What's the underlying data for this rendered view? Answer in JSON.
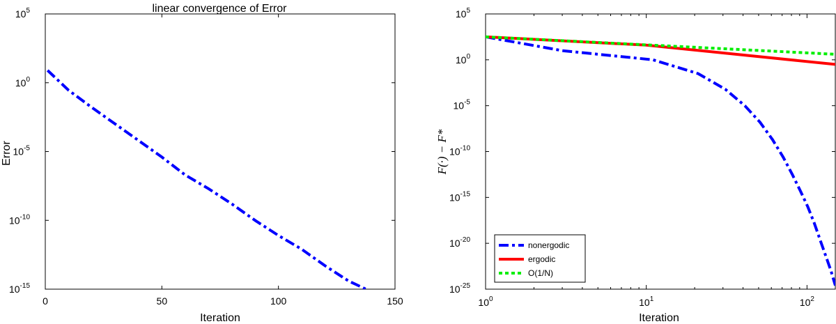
{
  "chart_data": [
    {
      "type": "line",
      "title": "linear convergence of Error",
      "xlabel": "Iteration",
      "ylabel": "Error",
      "xscale": "linear",
      "yscale": "log",
      "xlim": [
        0,
        150
      ],
      "ylim_exp": [
        -15,
        5
      ],
      "x_ticks": [
        0,
        50,
        100,
        150
      ],
      "x_tick_labels": [
        "0",
        "50",
        "100",
        "150"
      ],
      "y_tick_exps": [
        5,
        0,
        -5,
        -10,
        -15
      ],
      "y_tick_base": "10",
      "y_tick_exp_labels": [
        "5",
        "0",
        "-5",
        "-10",
        "-15"
      ],
      "grid": false,
      "series": [
        {
          "name": "",
          "color": "#0000ff",
          "style": "dash-dot",
          "x": [
            1,
            10,
            20,
            30,
            40,
            50,
            60,
            70,
            80,
            90,
            100,
            110,
            120,
            130,
            140,
            150
          ],
          "y_exp": [
            0.9,
            -0.55,
            -1.8,
            -3.0,
            -4.2,
            -5.4,
            -6.7,
            -7.7,
            -8.8,
            -10.0,
            -11.1,
            -12.1,
            -13.3,
            -14.4,
            -15.2,
            -16.6
          ]
        }
      ]
    },
    {
      "type": "line",
      "title": "",
      "xlabel": "Iteration",
      "ylabel": "F(·) − F*",
      "xscale": "log",
      "yscale": "log",
      "xlim": [
        1,
        150
      ],
      "ylim_exp": [
        -25,
        5
      ],
      "x_tick_exps": [
        0,
        1,
        2
      ],
      "x_tick_base": "10",
      "x_tick_exp_labels": [
        "0",
        "1",
        "2"
      ],
      "y_tick_exps": [
        5,
        0,
        -5,
        -10,
        -15,
        -20,
        -25
      ],
      "y_tick_base": "10",
      "y_tick_exp_labels": [
        "5",
        "0",
        "-5",
        "-10",
        "-15",
        "-20",
        "-25"
      ],
      "grid": false,
      "legend_position": "bottom-left",
      "series": [
        {
          "name": "nonergodic",
          "color": "#0000ff",
          "style": "dash-dot",
          "x": [
            1,
            3,
            11,
            21,
            31,
            41,
            51,
            61,
            71,
            81,
            91,
            101,
            111,
            121,
            131,
            141,
            150
          ],
          "y_exp": [
            2.5,
            1.0,
            0.0,
            -1.5,
            -3.2,
            -5.0,
            -6.8,
            -8.7,
            -10.6,
            -12.5,
            -14.3,
            -16.0,
            -17.8,
            -19.7,
            -21.4,
            -23.0,
            -24.6
          ]
        },
        {
          "name": "ergodic",
          "color": "#ff0000",
          "style": "solid",
          "x": [
            1,
            10,
            150
          ],
          "y_exp": [
            2.5,
            1.6,
            -0.5
          ]
        },
        {
          "name": "O(1/N)",
          "color": "#00ee00",
          "style": "dotted",
          "x": [
            1,
            150
          ],
          "y_exp": [
            2.5,
            0.6
          ]
        }
      ]
    }
  ]
}
